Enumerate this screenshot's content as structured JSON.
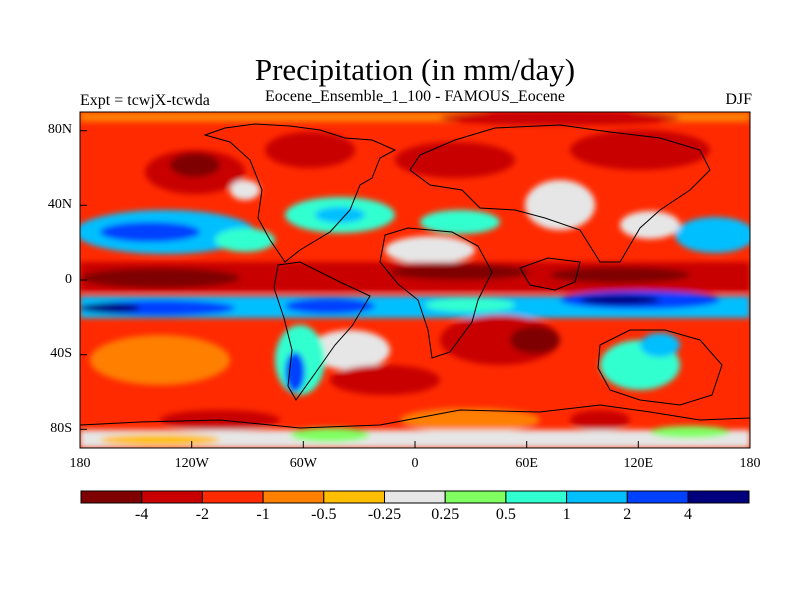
{
  "header": {
    "title": "Precipitation (in mm/day)",
    "subtitle": "Eocene_Ensemble_1_100 - FAMOUS_Eocene",
    "left_label": "Expt = tcwjX-tcwda",
    "right_label": "DJF"
  },
  "map": {
    "projection": "cylindrical-equidistant",
    "lon_range": [
      -180,
      180
    ],
    "lat_range": [
      -90,
      90
    ],
    "lat_ticks": [
      "80N",
      "40N",
      "0",
      "40S",
      "80S"
    ],
    "lon_ticks": [
      "180",
      "120W",
      "60W",
      "0",
      "60E",
      "120E",
      "180"
    ]
  },
  "colorbar": {
    "labels": [
      "-4",
      "-2",
      "-1",
      "-0.5",
      "-0.25",
      "0.25",
      "0.5",
      "1",
      "2",
      "4"
    ],
    "colors": [
      "#7f0000",
      "#c80000",
      "#ff2a00",
      "#ff7f00",
      "#ffbf00",
      "#e6e6e6",
      "#80ff60",
      "#30ffd0",
      "#00bfff",
      "#0040ff",
      "#00007f"
    ]
  }
}
